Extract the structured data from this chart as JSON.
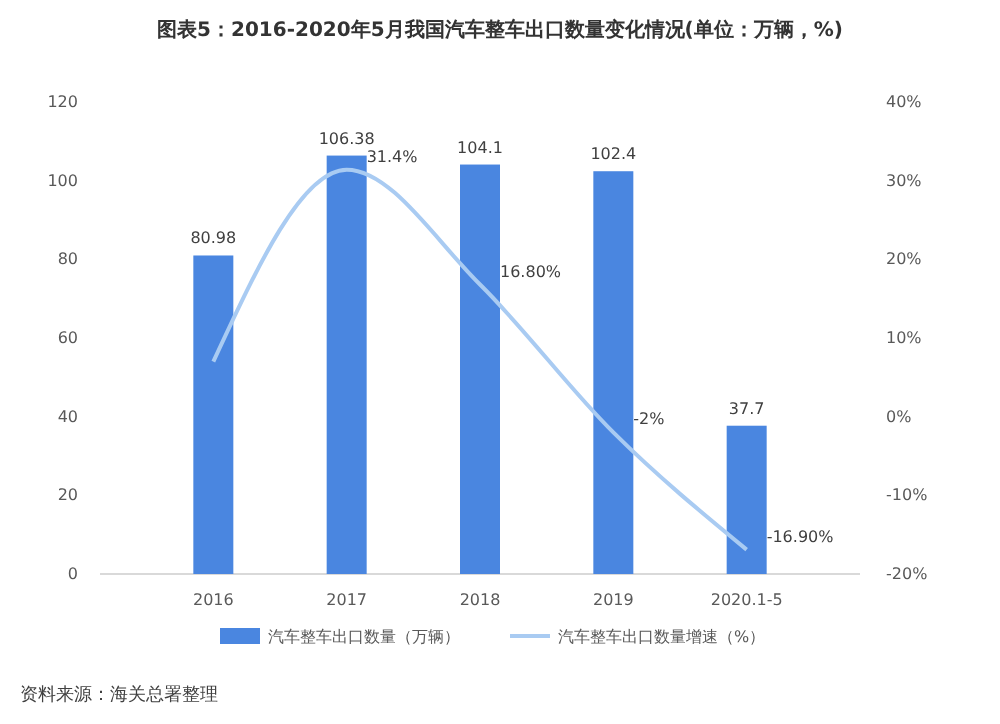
{
  "chart_data": {
    "type": "bar",
    "title": "图表5：2016-2020年5月我国汽车整车出口数量变化情况(单位：万辆，%)",
    "categories": [
      "2016",
      "2017",
      "2018",
      "2019",
      "2020.1-5"
    ],
    "series": [
      {
        "name": "汽车整车出口数量（万辆）",
        "color": "#4a86e0",
        "values": [
          80.98,
          106.38,
          104.1,
          102.4,
          37.7
        ],
        "value_labels": [
          "80.98",
          "106.38",
          "104.1",
          "102.4",
          "37.7"
        ]
      },
      {
        "name": "汽车整车出口数量增速（%）",
        "type": "line",
        "axis": "y2",
        "color": "#a9cbf2",
        "values": [
          7,
          31.4,
          16.8,
          -2,
          -16.9
        ],
        "value_labels": [
          null,
          "31.4%",
          "16.80%",
          "-2%",
          "-16.90%"
        ]
      }
    ],
    "ylim": [
      0,
      120
    ],
    "yticks": [
      0,
      20,
      40,
      60,
      80,
      100,
      120
    ],
    "y2lim": [
      -20,
      40
    ],
    "y2ticks": [
      {
        "value": -20,
        "label": "-20%"
      },
      {
        "value": -10,
        "label": "-10%"
      },
      {
        "value": 0,
        "label": "0%"
      },
      {
        "value": 10,
        "label": "10%"
      },
      {
        "value": 20,
        "label": "20%"
      },
      {
        "value": 30,
        "label": "30%"
      },
      {
        "value": 40,
        "label": "40%"
      }
    ],
    "legend": "bottom",
    "grid": false,
    "marker": "none",
    "annotations": [
      "资料来源：海关总署整理"
    ]
  }
}
